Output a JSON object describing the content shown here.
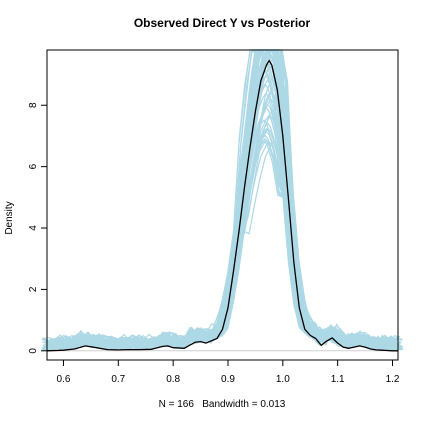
{
  "chart_data": {
    "type": "line",
    "title": "Observed Direct Y vs Posterior",
    "xlabel": "N = 166   Bandwidth = 0.013",
    "ylabel": "Density",
    "xlim": [
      0.57,
      1.21
    ],
    "ylim": [
      -0.3,
      9.8
    ],
    "xticks": [
      0.6,
      0.7,
      0.8,
      0.9,
      1.0,
      1.1,
      1.2
    ],
    "xtick_labels": [
      "0.6",
      "0.7",
      "0.8",
      "0.9",
      "1.0",
      "1.1",
      "1.2"
    ],
    "yticks": [
      0,
      2,
      4,
      6,
      8
    ],
    "ytick_labels": [
      "0",
      "2",
      "4",
      "6",
      "8"
    ],
    "grid": false,
    "colors": {
      "observed": "#000000",
      "posterior": "#add8e6",
      "zero_line": "#cfcfcf"
    },
    "series": [
      {
        "role": "observed",
        "x": [
          0.57,
          0.6,
          0.62,
          0.64,
          0.66,
          0.68,
          0.7,
          0.72,
          0.74,
          0.76,
          0.78,
          0.79,
          0.8,
          0.82,
          0.84,
          0.85,
          0.86,
          0.88,
          0.89,
          0.9,
          0.91,
          0.92,
          0.93,
          0.94,
          0.95,
          0.96,
          0.97,
          0.975,
          0.98,
          0.99,
          1.0,
          1.01,
          1.02,
          1.03,
          1.04,
          1.05,
          1.06,
          1.07,
          1.08,
          1.09,
          1.1,
          1.11,
          1.12,
          1.13,
          1.14,
          1.15,
          1.16,
          1.17,
          1.18,
          1.19,
          1.2,
          1.21
        ],
        "y": [
          0,
          0.02,
          0.06,
          0.16,
          0.1,
          0.04,
          0.03,
          0.04,
          0.04,
          0.05,
          0.14,
          0.16,
          0.1,
          0.08,
          0.28,
          0.3,
          0.25,
          0.4,
          0.7,
          1.4,
          2.6,
          3.9,
          5.3,
          6.6,
          7.8,
          8.8,
          9.3,
          9.45,
          9.3,
          8.5,
          7.0,
          5.0,
          2.9,
          1.4,
          0.7,
          0.5,
          0.4,
          0.18,
          0.32,
          0.42,
          0.25,
          0.12,
          0.08,
          0.12,
          0.16,
          0.12,
          0.06,
          0.03,
          0.02,
          0.01,
          0,
          0
        ]
      }
    ]
  }
}
